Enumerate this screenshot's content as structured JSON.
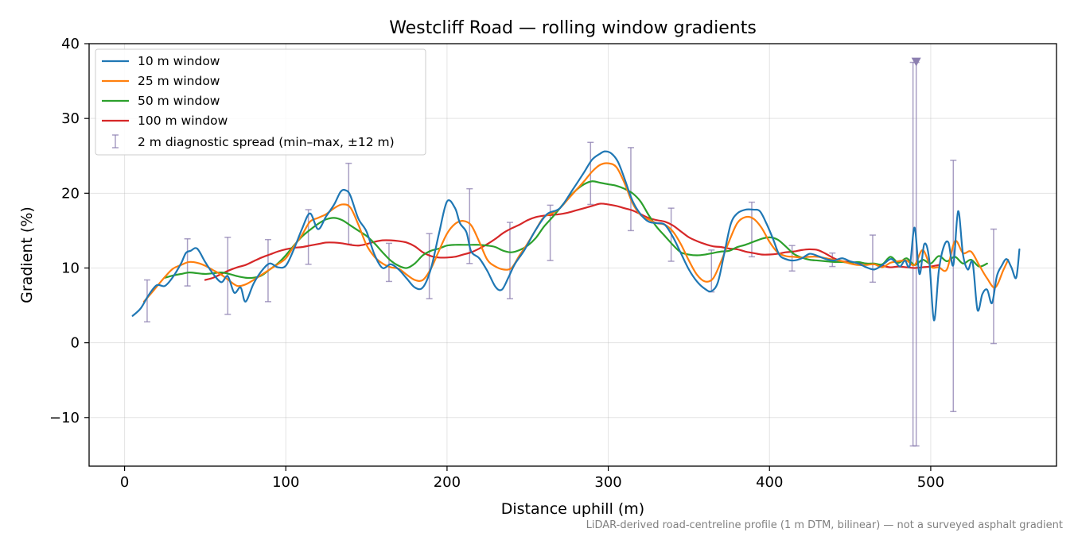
{
  "chart_data": {
    "type": "line",
    "title": "Westcliff Road — rolling window gradients",
    "xlabel": "Distance uphill (m)",
    "ylabel": "Gradient (%)",
    "xlim": [
      -22,
      578
    ],
    "ylim": [
      -16.5,
      40
    ],
    "xticks": [
      0,
      100,
      200,
      300,
      400,
      500
    ],
    "yticks": [
      -10,
      0,
      10,
      20,
      30,
      40
    ],
    "xtick_labels": [
      "0",
      "100",
      "200",
      "300",
      "400",
      "500"
    ],
    "ytick_labels": [
      "−10",
      "0",
      "10",
      "20",
      "30",
      "40"
    ],
    "grid": true,
    "legend_position": "upper left",
    "footnote": "LiDAR-derived road-centreline profile (1 m DTM, bilinear) — not a surveyed asphalt gradient",
    "series": [
      {
        "name": "10 m window",
        "color": "#1f77b4",
        "x": [
          5,
          10,
          15,
          20,
          25,
          30,
          35,
          38,
          41,
          45,
          50,
          55,
          60,
          64,
          68,
          72,
          75,
          80,
          85,
          90,
          95,
          100,
          105,
          110,
          115,
          120,
          125,
          130,
          134,
          137,
          140,
          145,
          150,
          155,
          160,
          165,
          170,
          175,
          180,
          185,
          190,
          195,
          200,
          205,
          208,
          212,
          215,
          220,
          225,
          230,
          234,
          238,
          242,
          248,
          255,
          262,
          270,
          278,
          285,
          290,
          295,
          298,
          302,
          306,
          310,
          315,
          320,
          325,
          330,
          335,
          340,
          345,
          350,
          355,
          360,
          364,
          368,
          372,
          376,
          380,
          385,
          390,
          394,
          398,
          402,
          406,
          410,
          415,
          420,
          425,
          430,
          435,
          440,
          445,
          450,
          455,
          460,
          465,
          470,
          475,
          478,
          481,
          484,
          487,
          490,
          493,
          496,
          499,
          502,
          505,
          508,
          511,
          514,
          517,
          520,
          523,
          526,
          529,
          532,
          535,
          538,
          541,
          544,
          547,
          550,
          553,
          555
        ],
        "values": [
          3.6,
          4.6,
          6.4,
          7.7,
          7.6,
          8.8,
          10.6,
          12.0,
          12.3,
          12.6,
          10.8,
          9.2,
          8.1,
          8.9,
          6.7,
          7.4,
          5.5,
          7.9,
          9.6,
          10.6,
          10.1,
          10.3,
          12.5,
          15.2,
          17.3,
          15.2,
          16.9,
          18.5,
          20.2,
          20.4,
          19.7,
          16.6,
          14.9,
          11.8,
          10.0,
          10.5,
          9.8,
          8.6,
          7.4,
          7.4,
          9.9,
          14.6,
          18.9,
          18.0,
          16.0,
          14.8,
          12.2,
          11.3,
          9.6,
          7.5,
          7.1,
          8.7,
          10.5,
          12.4,
          15.1,
          17.2,
          18.0,
          20.5,
          22.8,
          24.5,
          25.3,
          25.6,
          25.3,
          24.2,
          22.0,
          19.0,
          17.2,
          16.2,
          16.0,
          15.8,
          14.2,
          12.0,
          9.8,
          8.2,
          7.2,
          6.9,
          8.1,
          12.0,
          15.9,
          17.3,
          17.8,
          17.8,
          17.6,
          16.0,
          14.0,
          11.8,
          11.2,
          11.0,
          11.3,
          11.9,
          11.6,
          11.2,
          11.0,
          11.3,
          10.9,
          10.6,
          10.1,
          9.8,
          10.4,
          11.2,
          10.8,
          10.2,
          11.0,
          10.3,
          15.4,
          9.2,
          13.2,
          11.2,
          3.0,
          9.6,
          12.8,
          13.4,
          10.4,
          17.6,
          11.8,
          9.8,
          10.7,
          4.4,
          6.5,
          7.1,
          5.3,
          8.9,
          10.3,
          11.2,
          10.1,
          8.7,
          12.5
        ],
        "interpolation": "smooth"
      },
      {
        "name": "25 m window",
        "color": "#ff7f0e",
        "x": [
          12,
          18,
          25,
          30,
          35,
          40,
          45,
          50,
          55,
          60,
          65,
          70,
          75,
          80,
          85,
          90,
          95,
          100,
          105,
          110,
          115,
          120,
          125,
          130,
          135,
          140,
          145,
          150,
          155,
          160,
          165,
          170,
          175,
          180,
          185,
          190,
          195,
          200,
          205,
          210,
          215,
          220,
          225,
          230,
          235,
          240,
          245,
          250,
          255,
          260,
          265,
          270,
          275,
          280,
          285,
          290,
          295,
          300,
          305,
          310,
          315,
          320,
          325,
          330,
          335,
          340,
          345,
          350,
          355,
          360,
          365,
          370,
          375,
          380,
          385,
          390,
          395,
          400,
          405,
          410,
          415,
          420,
          425,
          430,
          435,
          440,
          445,
          450,
          455,
          460,
          465,
          470,
          475,
          480,
          485,
          490,
          495,
          500,
          505,
          510,
          515,
          520,
          525,
          530,
          535,
          540,
          545,
          548
        ],
        "values": [
          5.5,
          7.0,
          8.8,
          9.9,
          10.4,
          10.8,
          10.7,
          10.3,
          9.7,
          9.1,
          8.3,
          7.6,
          7.8,
          8.4,
          9.1,
          9.8,
          10.5,
          11.3,
          12.9,
          14.4,
          16.2,
          16.7,
          17.2,
          18.0,
          18.5,
          18.1,
          15.8,
          13.1,
          11.5,
          10.6,
          10.1,
          9.9,
          9.1,
          8.4,
          8.4,
          9.9,
          12.3,
          14.6,
          15.9,
          16.3,
          15.7,
          13.5,
          11.1,
          10.2,
          9.8,
          10.0,
          11.7,
          13.3,
          15.1,
          16.8,
          17.3,
          18.0,
          19.2,
          20.4,
          21.6,
          22.9,
          23.8,
          24.0,
          23.5,
          21.4,
          18.7,
          17.1,
          16.5,
          16.0,
          15.8,
          14.9,
          13.2,
          11.0,
          9.1,
          8.2,
          8.6,
          10.9,
          13.6,
          16.0,
          16.8,
          16.6,
          15.4,
          13.5,
          12.1,
          11.6,
          11.5,
          11.4,
          11.5,
          11.5,
          11.3,
          11.1,
          10.9,
          10.6,
          10.4,
          10.4,
          10.5,
          10.1,
          10.7,
          10.9,
          11.0,
          10.4,
          12.4,
          10.2,
          10.1,
          9.8,
          13.6,
          12.0,
          12.2,
          10.4,
          8.6,
          7.4,
          9.7,
          11.1
        ],
        "interpolation": "smooth"
      },
      {
        "name": "50 m window",
        "color": "#2ca02c",
        "x": [
          25,
          30,
          35,
          40,
          45,
          50,
          55,
          60,
          65,
          70,
          75,
          80,
          85,
          90,
          95,
          100,
          105,
          110,
          115,
          120,
          125,
          130,
          135,
          140,
          145,
          150,
          155,
          160,
          165,
          170,
          175,
          180,
          185,
          190,
          195,
          200,
          205,
          210,
          215,
          220,
          225,
          230,
          235,
          240,
          245,
          250,
          255,
          260,
          265,
          270,
          275,
          280,
          285,
          290,
          295,
          300,
          305,
          310,
          315,
          320,
          325,
          330,
          335,
          340,
          345,
          350,
          355,
          360,
          365,
          370,
          375,
          380,
          385,
          390,
          395,
          400,
          405,
          410,
          415,
          420,
          425,
          430,
          435,
          440,
          445,
          450,
          455,
          460,
          465,
          470,
          475,
          480,
          485,
          490,
          495,
          500,
          505,
          510,
          515,
          520,
          525,
          530,
          535
        ],
        "values": [
          8.7,
          9.0,
          9.2,
          9.4,
          9.3,
          9.2,
          9.3,
          9.4,
          9.2,
          8.9,
          8.7,
          8.7,
          9.0,
          9.8,
          10.6,
          11.7,
          13.0,
          14.2,
          15.1,
          15.9,
          16.5,
          16.7,
          16.4,
          15.7,
          15.0,
          14.3,
          13.3,
          12.1,
          11.0,
          10.3,
          10.0,
          10.6,
          11.7,
          12.3,
          12.6,
          13.0,
          13.1,
          13.1,
          13.1,
          13.1,
          13.0,
          12.8,
          12.3,
          12.1,
          12.4,
          13.0,
          14.0,
          15.5,
          16.7,
          18.0,
          19.3,
          20.4,
          21.2,
          21.6,
          21.4,
          21.2,
          21.0,
          20.6,
          20.0,
          18.9,
          17.1,
          15.5,
          14.3,
          13.1,
          12.1,
          11.8,
          11.7,
          11.8,
          12.0,
          12.2,
          12.3,
          12.8,
          13.1,
          13.5,
          13.9,
          14.1,
          13.8,
          12.9,
          11.9,
          11.4,
          11.1,
          11.0,
          10.9,
          10.8,
          10.8,
          10.7,
          10.8,
          10.6,
          10.6,
          10.5,
          11.5,
          10.7,
          11.3,
          10.4,
          11.1,
          10.6,
          11.6,
          10.9,
          11.5,
          10.6,
          11.1,
          10.2,
          10.6
        ],
        "interpolation": "smooth"
      },
      {
        "name": "100 m window",
        "color": "#d62728",
        "x": [
          50,
          55,
          60,
          65,
          70,
          75,
          80,
          85,
          90,
          95,
          100,
          105,
          110,
          115,
          120,
          125,
          130,
          135,
          140,
          145,
          150,
          155,
          160,
          165,
          170,
          175,
          180,
          185,
          190,
          195,
          200,
          205,
          210,
          215,
          220,
          225,
          230,
          235,
          240,
          245,
          250,
          255,
          260,
          265,
          270,
          275,
          280,
          285,
          290,
          295,
          300,
          305,
          310,
          315,
          320,
          325,
          330,
          335,
          340,
          345,
          350,
          355,
          360,
          365,
          370,
          375,
          380,
          385,
          390,
          395,
          400,
          405,
          410,
          415,
          420,
          425,
          430,
          435,
          440,
          445,
          450,
          455,
          460,
          465,
          470,
          475,
          480,
          485,
          490,
          495,
          500,
          505
        ],
        "values": [
          8.4,
          8.7,
          9.2,
          9.7,
          10.1,
          10.4,
          10.9,
          11.4,
          11.8,
          12.2,
          12.5,
          12.7,
          12.8,
          13.0,
          13.2,
          13.4,
          13.4,
          13.3,
          13.1,
          13.0,
          13.2,
          13.5,
          13.7,
          13.7,
          13.6,
          13.4,
          12.9,
          12.1,
          11.6,
          11.4,
          11.4,
          11.5,
          11.8,
          12.1,
          12.6,
          13.2,
          13.9,
          14.7,
          15.3,
          15.8,
          16.4,
          16.8,
          17.0,
          17.1,
          17.2,
          17.4,
          17.7,
          18.0,
          18.3,
          18.6,
          18.5,
          18.3,
          18.0,
          17.7,
          17.2,
          16.7,
          16.4,
          16.2,
          15.7,
          14.9,
          14.1,
          13.6,
          13.2,
          12.9,
          12.8,
          12.6,
          12.5,
          12.2,
          12.0,
          11.8,
          11.8,
          11.9,
          12.1,
          12.2,
          12.4,
          12.5,
          12.4,
          11.9,
          11.3,
          10.9,
          10.8,
          10.7,
          10.6,
          10.5,
          10.3,
          10.1,
          10.2,
          10.1,
          10.0,
          10.1,
          10.2,
          10.4
        ],
        "interpolation": "smooth"
      }
    ],
    "error_bars": {
      "name": "2 m diagnostic spread (min–max, ±12 m)",
      "color": "#8c7fb0",
      "x": [
        14,
        39,
        64,
        89,
        114,
        139,
        164,
        189,
        214,
        239,
        264,
        289,
        314,
        339,
        364,
        389,
        414,
        439,
        464,
        489,
        491,
        514,
        539
      ],
      "low": [
        2.8,
        7.6,
        3.8,
        5.5,
        10.5,
        13.2,
        8.2,
        5.9,
        10.6,
        5.9,
        11.0,
        18.5,
        15.0,
        10.9,
        6.8,
        11.5,
        9.6,
        10.2,
        8.1,
        -13.8,
        -13.8,
        -9.2,
        -0.1
      ],
      "high": [
        8.4,
        13.9,
        14.1,
        13.8,
        17.8,
        24.0,
        13.3,
        14.6,
        20.6,
        16.1,
        18.4,
        26.8,
        26.1,
        18.0,
        12.4,
        18.8,
        13.0,
        12.0,
        14.4,
        37.5,
        37.5,
        24.4,
        15.2
      ]
    },
    "marker": {
      "type": "triangle-down",
      "x": 491,
      "y": 37.6,
      "color": "#8c7fb0"
    }
  }
}
